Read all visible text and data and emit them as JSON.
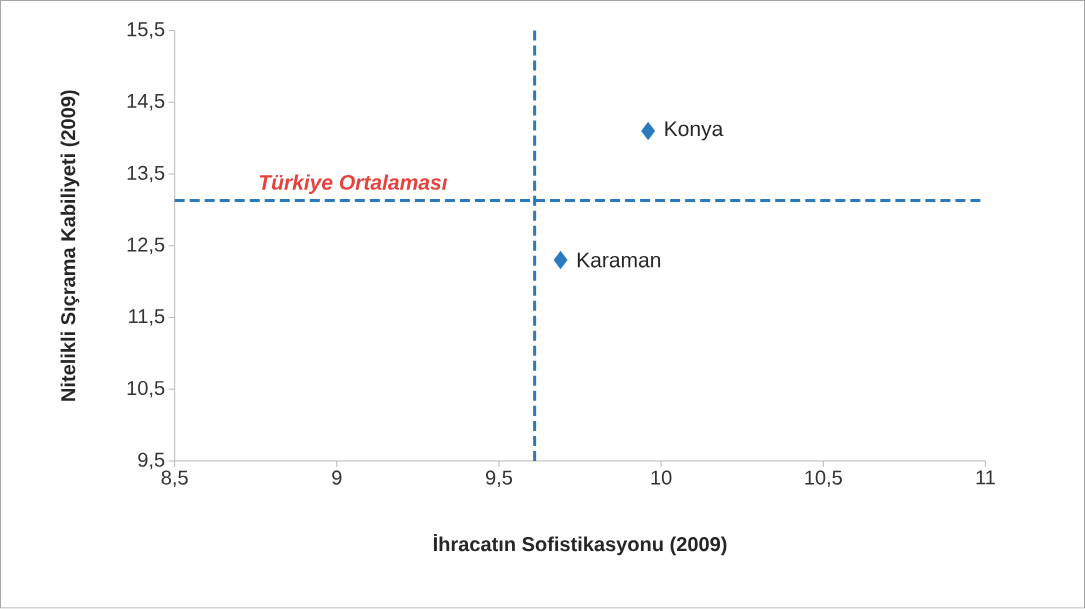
{
  "chart_data": {
    "type": "scatter",
    "xlabel": "İhracatın Sofistikasyonu (2009)",
    "ylabel": "Nitelikli Sıçrama Kabiliyeti (2009)",
    "series": [
      {
        "name": "Konya",
        "color": "#2a7abf",
        "x": [
          9.96
        ],
        "values": [
          14.1
        ]
      },
      {
        "name": "Karaman",
        "color": "#2a7abf",
        "x": [
          9.69
        ],
        "values": [
          12.3
        ]
      }
    ],
    "marker": "diamond",
    "grid": false,
    "xlim": [
      8.5,
      11
    ],
    "ylim": [
      9.5,
      15.5
    ],
    "xticks": [
      {
        "value": 8.5,
        "label": "8,5"
      },
      9,
      {
        "value": 9.5,
        "label": "9,5"
      },
      10,
      {
        "value": 10.5,
        "label": "10,5"
      },
      11
    ],
    "yticks": [
      {
        "value": 9.5,
        "label": "9,5"
      },
      {
        "value": 10.5,
        "label": "10,5"
      },
      {
        "value": 11.5,
        "label": "11,5"
      },
      {
        "value": 12.5,
        "label": "12,5"
      },
      {
        "value": 13.5,
        "label": "13,5"
      },
      {
        "value": 14.5,
        "label": "14,5"
      },
      {
        "value": 15.5,
        "label": "15,5"
      }
    ],
    "ref_lines": [
      {
        "axis": "x",
        "value": 9.61,
        "color": "#2a7abf",
        "line_style": "dashed"
      },
      {
        "axis": "y",
        "value": 13.13,
        "label": "Türkiye Ortalaması",
        "color": "#2a7abf",
        "line_style": "dashed"
      }
    ]
  }
}
